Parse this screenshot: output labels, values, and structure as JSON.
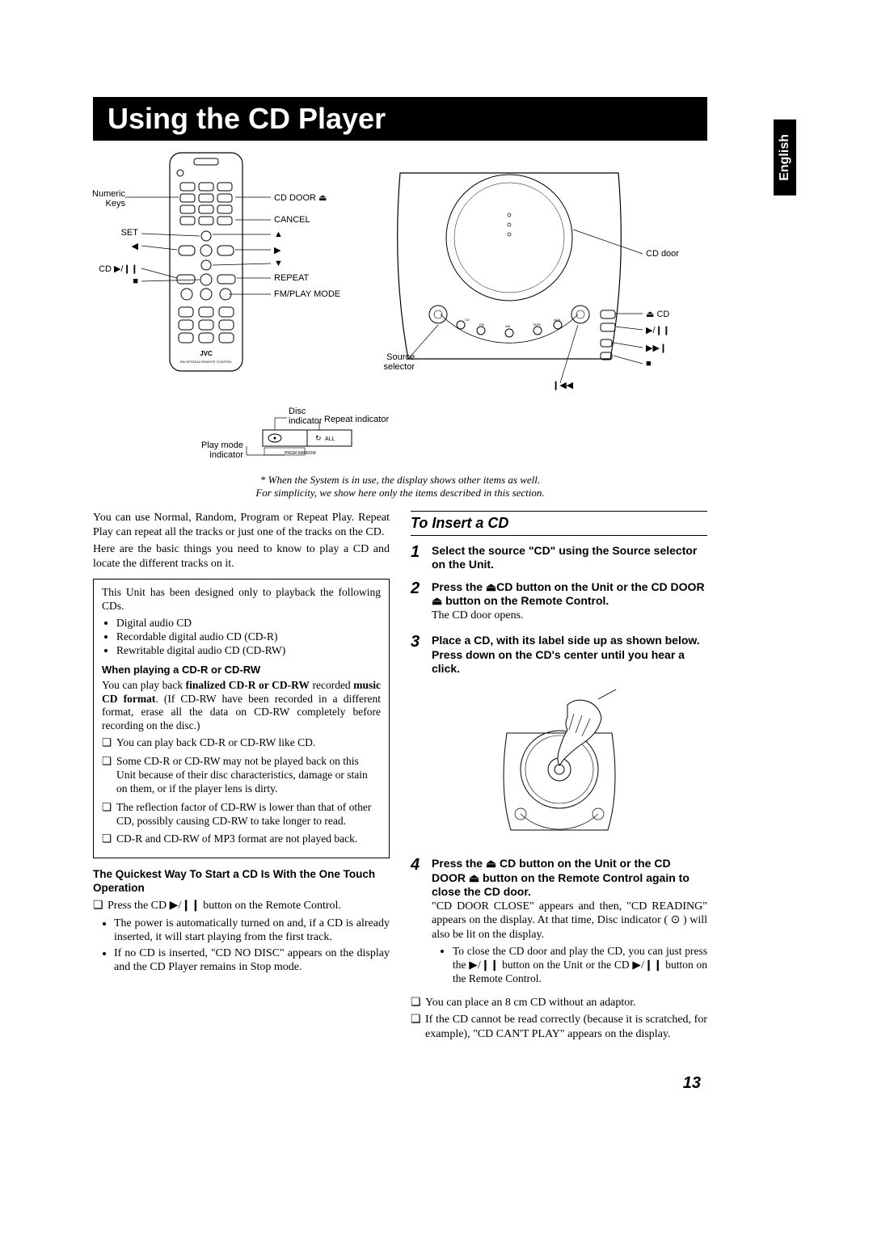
{
  "title": "Using the CD Player",
  "language_tab": "English",
  "remote_labels": {
    "numeric_keys": "Numeric\nKeys",
    "set": "SET",
    "left": "◀",
    "cd_play": "CD ▶/❙❙",
    "stop": "■",
    "cd_door": "CD DOOR ⏏",
    "cancel": "CANCEL",
    "up": "▲",
    "right": "▶",
    "down": "▼",
    "repeat": "REPEAT",
    "fm_play": "FM/PLAY MODE"
  },
  "unit_labels": {
    "cd_door": "CD door",
    "eject_cd": "⏏ CD",
    "play_pause": "▶/❙❙",
    "next": "▶▶❙",
    "stop": "■",
    "prev": "❙◀◀",
    "source_selector": "Source\nselector"
  },
  "display_labels": {
    "disc_indicator": "Disc\nindicator",
    "repeat_indicator": "Repeat indicator",
    "play_mode_indicator": "Play mode\nindicator",
    "box_left": "PRGM RANDOM",
    "box_right_icon": "↻ ALL"
  },
  "diagram_note_1": "* When the System is in use, the display shows other items as well.",
  "diagram_note_2": "For simplicity, we show here only the items described in this section.",
  "left_col": {
    "intro_1": "You can use Normal, Random, Program or Repeat Play. Repeat Play can repeat all the tracks or just one of the tracks on the CD.",
    "intro_2": "Here are the basic things you need to know to play a CD and locate the different tracks on it.",
    "box_intro": "This Unit has been designed only to playback the following CDs.",
    "box_b1": "Digital audio CD",
    "box_b2": "Recordable digital audio CD (CD-R)",
    "box_b3": "Rewritable digital audio CD (CD-RW)",
    "box_h": "When playing a CD-R or CD-RW",
    "box_p": "You can play back finalized CD-R or CD-RW recorded music CD format. (If CD-RW have been recorded in a different format, erase all the data on CD-RW completely before recording on the disc.)",
    "box_sq1": "You can play back CD-R or CD-RW like CD.",
    "box_sq2": "Some CD-R or CD-RW may not be played back on this Unit because of their disc characteristics, damage or stain on them, or if the player lens is dirty.",
    "box_sq3": "The reflection factor of CD-RW is lower than that of other CD, possibly causing CD-RW to take longer to read.",
    "box_sq4": "CD-R and CD-RW of MP3 format are not played back.",
    "quick_h": "The Quickest Way To Start a CD Is With the One Touch Operation",
    "quick_sq": "Press the CD ▶/❙❙ button on the Remote Control.",
    "quick_b1": "The power is automatically turned on and, if a CD is already inserted, it will start playing from the first track.",
    "quick_b2": "If no CD is inserted, \"CD NO DISC\" appears on the display and the CD Player remains in Stop mode."
  },
  "right_col": {
    "section_head": "To Insert a CD",
    "s1_title": "Select the source \"CD\" using the Source selector on the Unit.",
    "s2_title": "Press the ⏏CD button on the Unit or the CD DOOR ⏏ button on the Remote Control.",
    "s2_sub": "The CD door opens.",
    "s3_title": "Place a CD, with its label side up as shown below. Press down on the CD's center until you hear a click.",
    "s4_title": "Press the ⏏ CD button on the Unit or the CD DOOR ⏏ button on the Remote Control again to close the CD door.",
    "s4_p": "\"CD DOOR CLOSE\" appears and then, \"CD READING\" appears on the display. At that time, Disc indicator ( ⊙ ) will also be lit on the display.",
    "s4_b1": "To close the CD door and play the CD, you can just press the ▶/❙❙ button on the Unit or the CD ▶/❙❙ button on the Remote Control.",
    "s4_sq1": "You can place an 8 cm CD without an adaptor.",
    "s4_sq2": "If the CD cannot be read correctly (because it is scratched, for example), \"CD CAN'T PLAY\" appears on the display."
  },
  "page_number": "13",
  "colors": {
    "black": "#000000",
    "white": "#ffffff"
  }
}
